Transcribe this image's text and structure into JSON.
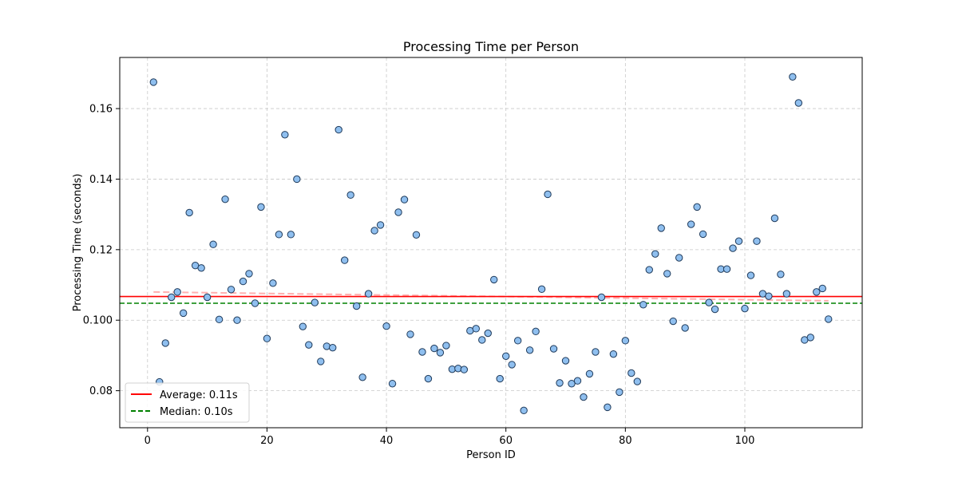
{
  "chart_data": {
    "type": "scatter",
    "title": "Processing Time per Person",
    "xlabel": "Person ID",
    "ylabel": "Processing Time (seconds)",
    "xlim": [
      -4.65,
      119.65
    ],
    "ylim": [
      0.0695,
      0.1745
    ],
    "xticks": [
      0,
      20,
      40,
      60,
      80,
      100
    ],
    "yticks": [
      0.08,
      0.1,
      0.12,
      0.14,
      0.16
    ],
    "xtick_labels": [
      "0",
      "20",
      "40",
      "60",
      "80",
      "100"
    ],
    "ytick_labels": [
      "0.08",
      "0.100",
      "0.12",
      "0.14",
      "0.16"
    ],
    "grid": true,
    "legend_position": "lower-left",
    "colors": {
      "points_fill": "#8fbfef",
      "points_edge": "#1f3a5a",
      "average_line": "#ff0000",
      "median_line": "#008000",
      "trend_line": "#ffb0b0"
    },
    "legend": [
      {
        "label": "Average: 0.11s",
        "style": "solid",
        "color": "#ff0000"
      },
      {
        "label": "Median: 0.10s",
        "style": "dashed",
        "color": "#008000"
      }
    ],
    "average": 0.1067,
    "median": 0.1048,
    "trend": {
      "x": [
        1,
        114
      ],
      "y": [
        0.108,
        0.1055
      ]
    },
    "points": {
      "x": [
        1,
        2,
        3,
        4,
        5,
        6,
        7,
        8,
        9,
        10,
        11,
        12,
        13,
        14,
        15,
        16,
        17,
        18,
        19,
        20,
        21,
        22,
        23,
        24,
        25,
        26,
        27,
        28,
        29,
        30,
        31,
        32,
        33,
        34,
        35,
        36,
        37,
        38,
        39,
        40,
        41,
        42,
        43,
        44,
        45,
        46,
        47,
        48,
        49,
        50,
        51,
        52,
        53,
        54,
        55,
        56,
        57,
        58,
        59,
        60,
        61,
        62,
        63,
        64,
        65,
        66,
        67,
        68,
        69,
        70,
        71,
        72,
        73,
        74,
        75,
        76,
        77,
        78,
        79,
        80,
        81,
        82,
        83,
        84,
        85,
        86,
        87,
        88,
        89,
        90,
        91,
        92,
        93,
        94,
        95,
        96,
        97,
        98,
        99,
        100,
        101,
        102,
        103,
        104,
        105,
        106,
        107,
        108,
        109,
        110,
        111,
        112,
        113,
        114
      ],
      "y": [
        0.1675,
        0.0825,
        0.0935,
        0.1065,
        0.108,
        0.102,
        0.1305,
        0.1155,
        0.1148,
        0.1065,
        0.1215,
        0.1002,
        0.1343,
        0.1087,
        0.1,
        0.111,
        0.1132,
        0.1048,
        0.1321,
        0.0948,
        0.1105,
        0.1243,
        0.1526,
        0.1243,
        0.14,
        0.0982,
        0.093,
        0.105,
        0.0883,
        0.0926,
        0.0922,
        0.154,
        0.117,
        0.1355,
        0.104,
        0.0838,
        0.1075,
        0.1254,
        0.127,
        0.0983,
        0.082,
        0.1306,
        0.1342,
        0.096,
        0.1242,
        0.091,
        0.0834,
        0.092,
        0.0908,
        0.0928,
        0.0861,
        0.0863,
        0.086,
        0.097,
        0.0976,
        0.0944,
        0.0963,
        0.1115,
        0.0834,
        0.0898,
        0.0874,
        0.0942,
        0.0744,
        0.0915,
        0.0968,
        0.1088,
        0.1357,
        0.0919,
        0.0822,
        0.0885,
        0.082,
        0.0828,
        0.0782,
        0.0848,
        0.091,
        0.1065,
        0.0753,
        0.0904,
        0.0796,
        0.0942,
        0.085,
        0.0826,
        0.1044,
        0.1143,
        0.1188,
        0.1261,
        0.1132,
        0.0997,
        0.1177,
        0.0978,
        0.1272,
        0.1321,
        0.1244,
        0.105,
        0.1031,
        0.1145,
        0.1145,
        0.1204,
        0.1224,
        0.1033,
        0.1127,
        0.1224,
        0.1075,
        0.1068,
        0.1289,
        0.113,
        0.1075,
        0.169,
        0.1616,
        0.0944,
        0.0951,
        0.108,
        0.109,
        0.1003
      ]
    }
  }
}
